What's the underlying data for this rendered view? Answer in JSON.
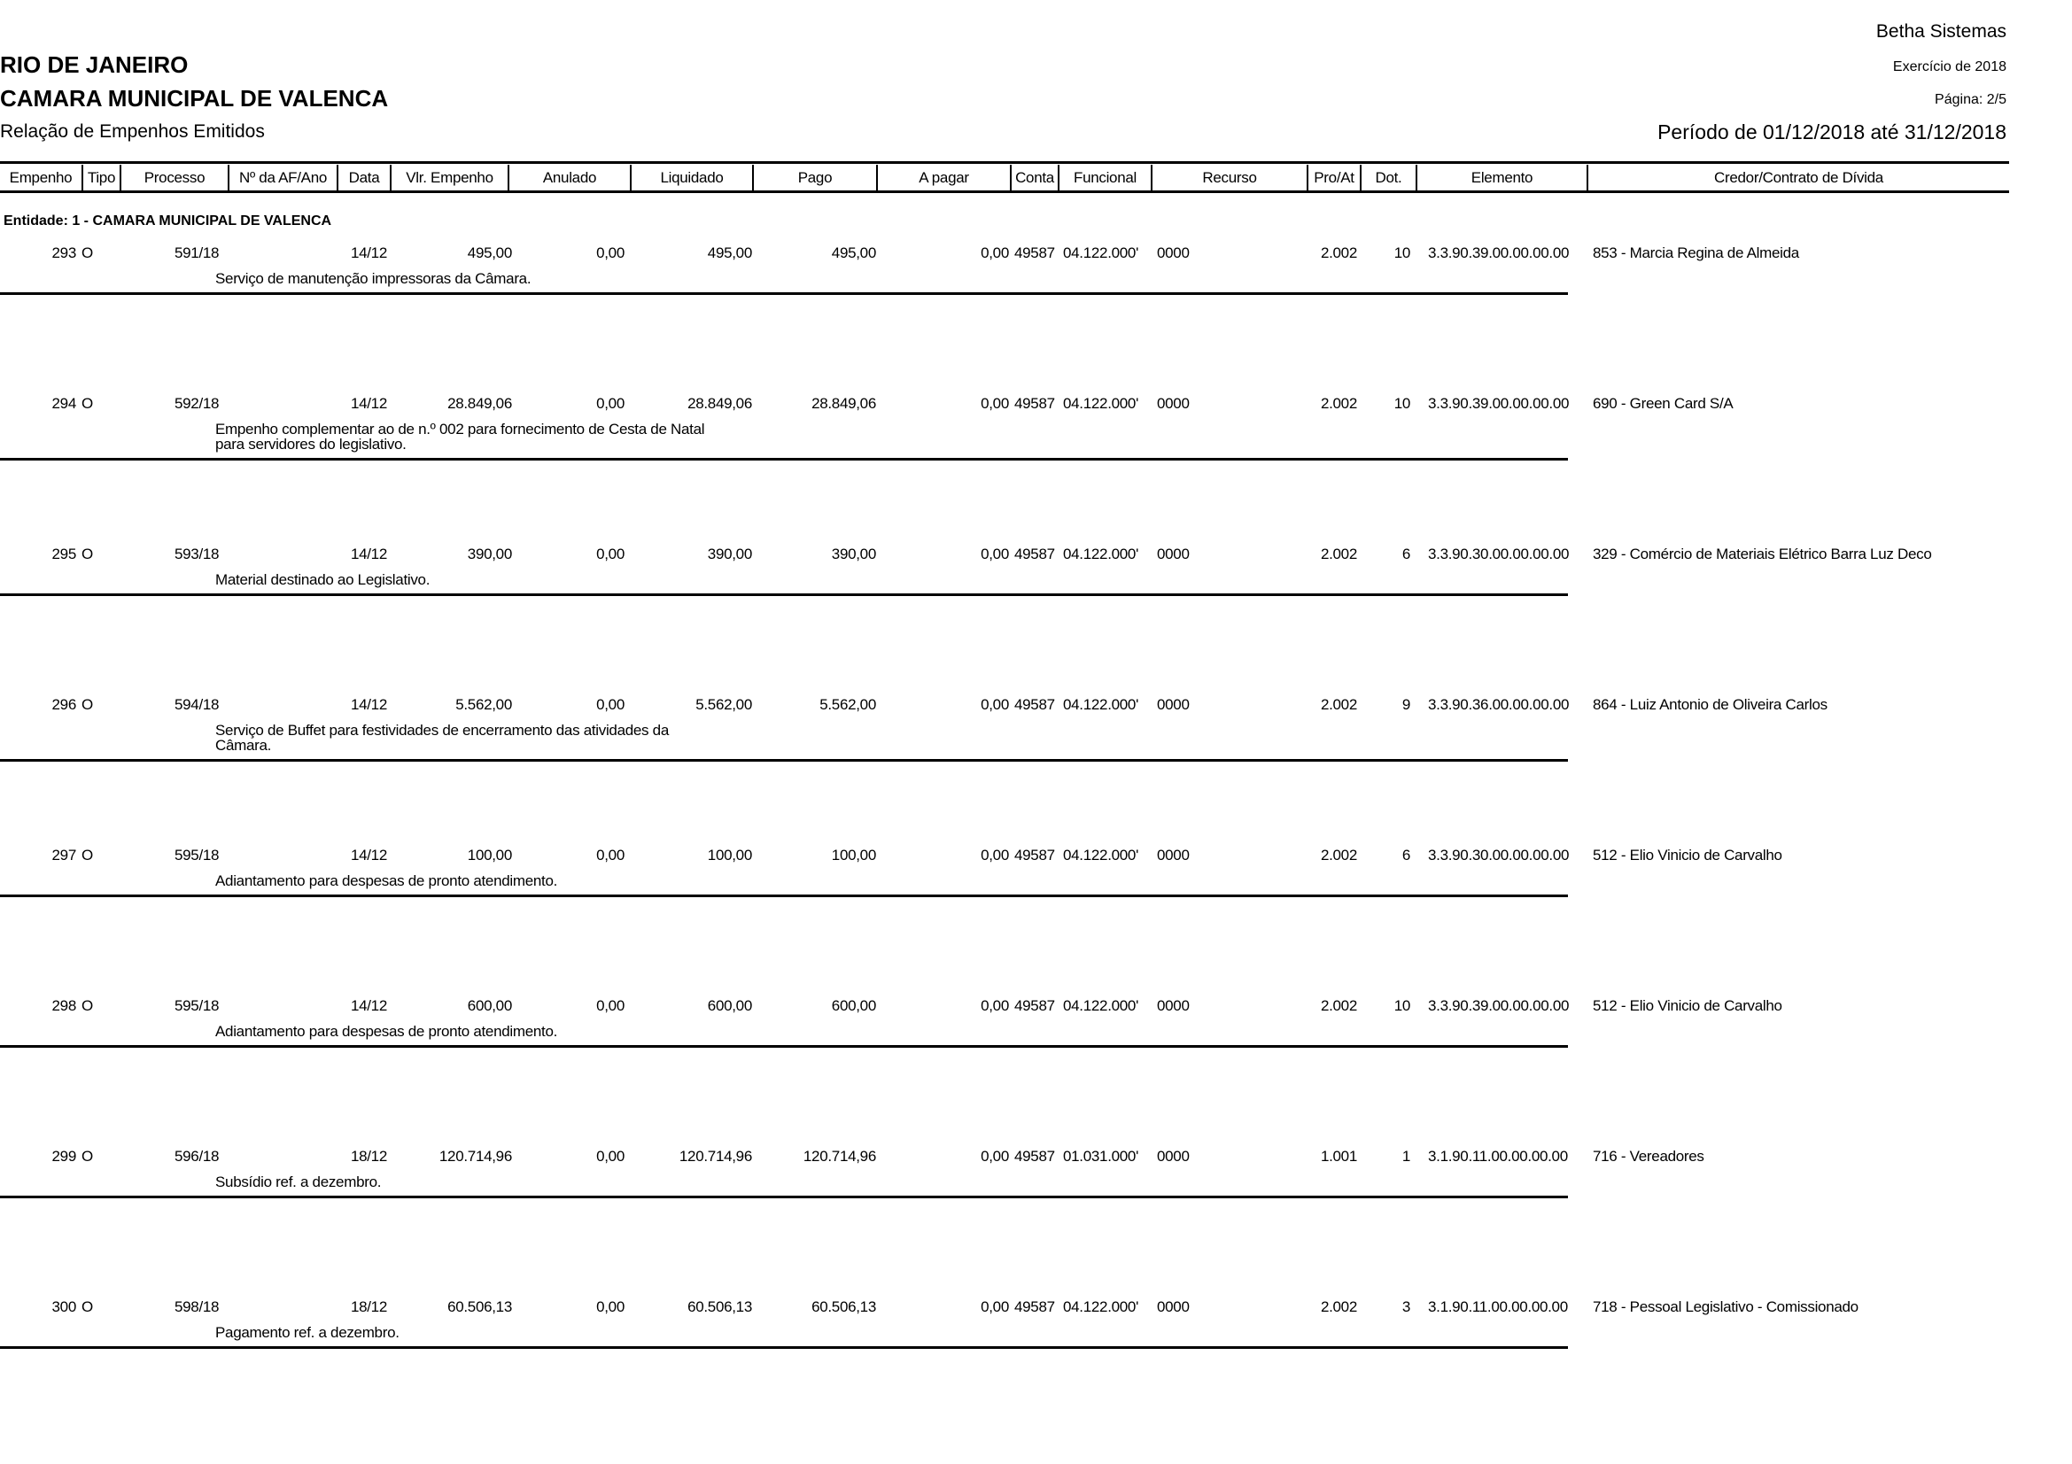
{
  "header": {
    "company": "Betha Sistemas",
    "state": "RIO DE JANEIRO",
    "entity_name": "CAMARA MUNICIPAL DE VALENCA",
    "report_title": "Relação de Empenhos Emitidos",
    "exercise": "Exercício de 2018",
    "page": "Página: 2/5",
    "period": "Período de 01/12/2018 até 31/12/2018"
  },
  "columns": [
    "Empenho",
    "Tipo",
    "Processo",
    "Nº da AF/Ano",
    "Data",
    "Vlr. Empenho",
    "Anulado",
    "Liquidado",
    "Pago",
    "A pagar",
    "Conta",
    "Funcional",
    "Recurso",
    "Pro/At",
    "Dot.",
    "Elemento",
    "Credor/Contrato de Dívida"
  ],
  "entity_line": "Entidade: 1 - CAMARA MUNICIPAL DE VALENCA",
  "rows": [
    {
      "empenho": "293",
      "tipo": "O",
      "processo": "591/18",
      "af": "",
      "data": "14/12",
      "vlr": "495,00",
      "anulado": "0,00",
      "liquidado": "495,00",
      "pago": "495,00",
      "apagar": "0,00",
      "conta": "49587",
      "funcional": "04.122.000'",
      "recurso": "0000",
      "proat": "2.002",
      "dot": "10",
      "elemento": "3.3.90.39.00.00.00.00",
      "credor": "853 - Marcia Regina de Almeida",
      "descricao": [
        "Serviço de manutenção impressoras da Câmara."
      ]
    },
    {
      "empenho": "294",
      "tipo": "O",
      "processo": "592/18",
      "af": "",
      "data": "14/12",
      "vlr": "28.849,06",
      "anulado": "0,00",
      "liquidado": "28.849,06",
      "pago": "28.849,06",
      "apagar": "0,00",
      "conta": "49587",
      "funcional": "04.122.000'",
      "recurso": "0000",
      "proat": "2.002",
      "dot": "10",
      "elemento": "3.3.90.39.00.00.00.00",
      "credor": "690 - Green Card S/A",
      "descricao": [
        "Empenho complementar ao de n.º 002 para fornecimento de Cesta de Natal",
        "para servidores do legislativo."
      ]
    },
    {
      "empenho": "295",
      "tipo": "O",
      "processo": "593/18",
      "af": "",
      "data": "14/12",
      "vlr": "390,00",
      "anulado": "0,00",
      "liquidado": "390,00",
      "pago": "390,00",
      "apagar": "0,00",
      "conta": "49587",
      "funcional": "04.122.000'",
      "recurso": "0000",
      "proat": "2.002",
      "dot": "6",
      "elemento": "3.3.90.30.00.00.00.00",
      "credor": "329 - Comércio de Materiais Elétrico Barra Luz Deco",
      "descricao": [
        "Material destinado ao Legislativo."
      ]
    },
    {
      "empenho": "296",
      "tipo": "O",
      "processo": "594/18",
      "af": "",
      "data": "14/12",
      "vlr": "5.562,00",
      "anulado": "0,00",
      "liquidado": "5.562,00",
      "pago": "5.562,00",
      "apagar": "0,00",
      "conta": "49587",
      "funcional": "04.122.000'",
      "recurso": "0000",
      "proat": "2.002",
      "dot": "9",
      "elemento": "3.3.90.36.00.00.00.00",
      "credor": "864 - Luiz Antonio de Oliveira Carlos",
      "descricao": [
        "Serviço de Buffet para festividades de encerramento das atividades da",
        "Câmara."
      ]
    },
    {
      "empenho": "297",
      "tipo": "O",
      "processo": "595/18",
      "af": "",
      "data": "14/12",
      "vlr": "100,00",
      "anulado": "0,00",
      "liquidado": "100,00",
      "pago": "100,00",
      "apagar": "0,00",
      "conta": "49587",
      "funcional": "04.122.000'",
      "recurso": "0000",
      "proat": "2.002",
      "dot": "6",
      "elemento": "3.3.90.30.00.00.00.00",
      "credor": "512 - Elio Vinicio de Carvalho",
      "descricao": [
        "Adiantamento para despesas de pronto atendimento."
      ]
    },
    {
      "empenho": "298",
      "tipo": "O",
      "processo": "595/18",
      "af": "",
      "data": "14/12",
      "vlr": "600,00",
      "anulado": "0,00",
      "liquidado": "600,00",
      "pago": "600,00",
      "apagar": "0,00",
      "conta": "49587",
      "funcional": "04.122.000'",
      "recurso": "0000",
      "proat": "2.002",
      "dot": "10",
      "elemento": "3.3.90.39.00.00.00.00",
      "credor": "512 - Elio Vinicio de Carvalho",
      "descricao": [
        "Adiantamento para despesas de pronto atendimento."
      ]
    },
    {
      "empenho": "299",
      "tipo": "O",
      "processo": "596/18",
      "af": "",
      "data": "18/12",
      "vlr": "120.714,96",
      "anulado": "0,00",
      "liquidado": "120.714,96",
      "pago": "120.714,96",
      "apagar": "0,00",
      "conta": "49587",
      "funcional": "01.031.000'",
      "recurso": "0000",
      "proat": "1.001",
      "dot": "1",
      "elemento": "3.1.90.11.00.00.00.00",
      "credor": "716 - Vereadores",
      "descricao": [
        "Subsídio ref. a dezembro."
      ]
    },
    {
      "empenho": "300",
      "tipo": "O",
      "processo": "598/18",
      "af": "",
      "data": "18/12",
      "vlr": "60.506,13",
      "anulado": "0,00",
      "liquidado": "60.506,13",
      "pago": "60.506,13",
      "apagar": "0,00",
      "conta": "49587",
      "funcional": "04.122.000'",
      "recurso": "0000",
      "proat": "2.002",
      "dot": "3",
      "elemento": "3.1.90.11.00.00.00.00",
      "credor": "718 - Pessoal Legislativo - Comissionado",
      "descricao": [
        "Pagamento ref. a dezembro."
      ]
    }
  ]
}
